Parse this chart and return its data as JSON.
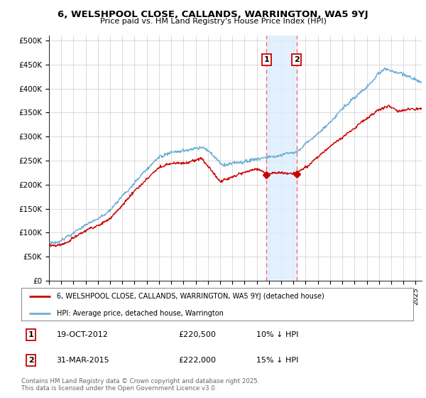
{
  "title1": "6, WELSHPOOL CLOSE, CALLANDS, WARRINGTON, WA5 9YJ",
  "title2": "Price paid vs. HM Land Registry's House Price Index (HPI)",
  "xlim_start": 1995.0,
  "xlim_end": 2025.5,
  "ylim": [
    0,
    510000
  ],
  "yticks": [
    0,
    50000,
    100000,
    150000,
    200000,
    250000,
    300000,
    350000,
    400000,
    450000,
    500000
  ],
  "ytick_labels": [
    "£0",
    "£50K",
    "£100K",
    "£150K",
    "£200K",
    "£250K",
    "£300K",
    "£350K",
    "£400K",
    "£450K",
    "£500K"
  ],
  "legend_line1": "6, WELSHPOOL CLOSE, CALLANDS, WARRINGTON, WA5 9YJ (detached house)",
  "legend_line2": "HPI: Average price, detached house, Warrington",
  "marker1_date": 2012.8,
  "marker1_price": 220500,
  "marker1_label": "19-OCT-2012",
  "marker1_amount": "£220,500",
  "marker1_pct": "10% ↓ HPI",
  "marker2_date": 2015.25,
  "marker2_price": 222000,
  "marker2_label": "31-MAR-2015",
  "marker2_amount": "£222,000",
  "marker2_pct": "15% ↓ HPI",
  "footer": "Contains HM Land Registry data © Crown copyright and database right 2025.\nThis data is licensed under the Open Government Licence v3.0.",
  "hpi_color": "#6baed6",
  "price_color": "#cc0000",
  "marker_box_color": "#cc0000",
  "shade_color": "#ddeeff",
  "vline_color": "#ff6666",
  "background_color": "#ffffff"
}
